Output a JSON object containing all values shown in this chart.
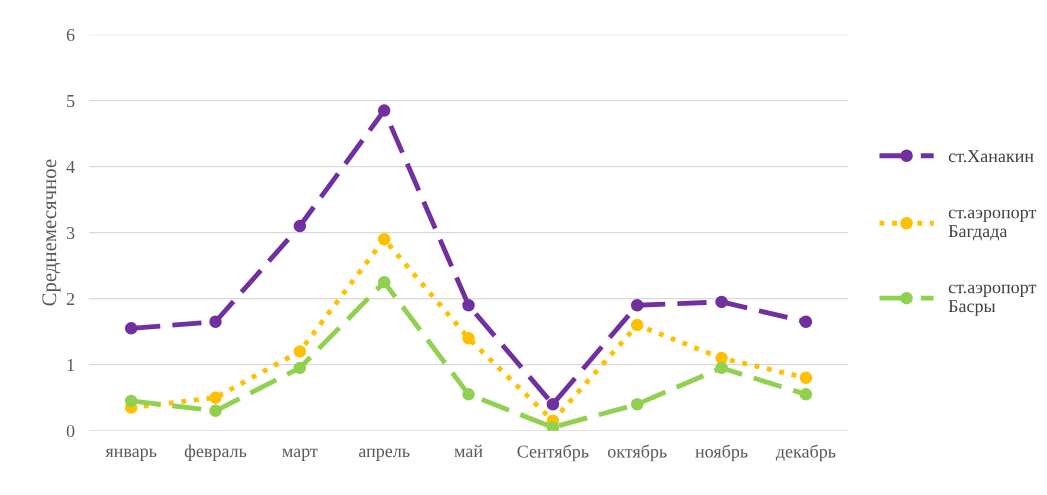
{
  "chart_data": {
    "type": "line",
    "ylabel": "Среднемесячное",
    "categories": [
      "январь",
      "февраль",
      "март",
      "апрель",
      "май",
      "Сентябрь",
      "октябрь",
      "ноябрь",
      "декабрь"
    ],
    "series": [
      {
        "name": "ст.Ханакин",
        "color": "#7030a0",
        "line_style": "dashed",
        "values": [
          1.55,
          1.65,
          3.1,
          4.85,
          1.9,
          0.4,
          1.9,
          1.95,
          1.65
        ]
      },
      {
        "name": "ст.аэропорт\nБагдада",
        "color": "#ffc000",
        "line_style": "dotted",
        "values": [
          0.35,
          0.5,
          1.2,
          2.9,
          1.4,
          0.15,
          1.6,
          1.1,
          0.8
        ]
      },
      {
        "name": "ст.аэропорт\nБасры",
        "color": "#92d050",
        "line_style": "dashed",
        "values": [
          0.45,
          0.3,
          0.95,
          2.25,
          0.55,
          0.05,
          0.4,
          0.95,
          0.55
        ]
      }
    ],
    "ylim": [
      0,
      6
    ],
    "yticks": [
      0,
      1,
      2,
      3,
      4,
      5,
      6
    ],
    "grid": "y",
    "legend": "right",
    "marker": "circle"
  }
}
